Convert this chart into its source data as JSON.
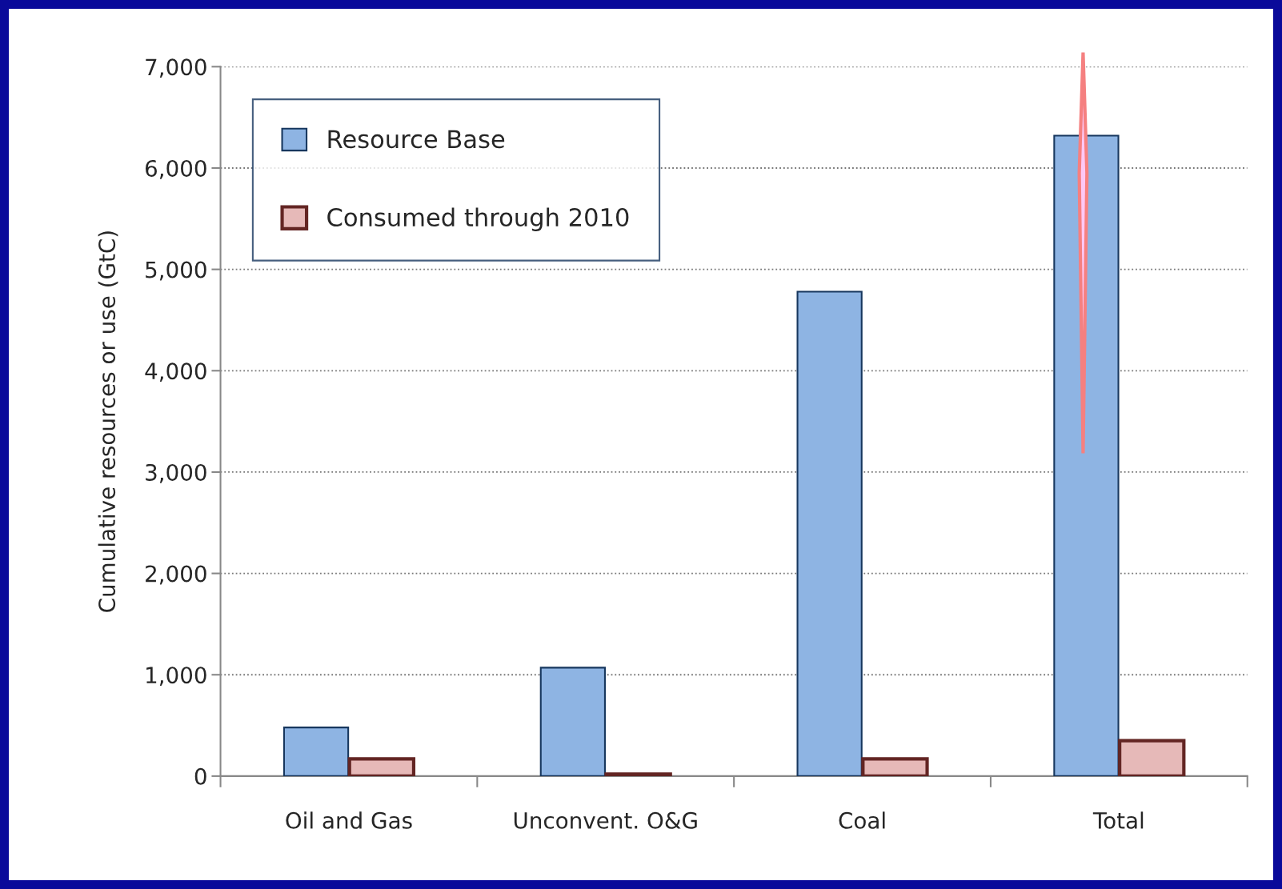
{
  "chart_data": {
    "type": "bar",
    "ylabel": "Cumulative resources or use (GtC)",
    "categories": [
      "Oil and Gas",
      "Unconvent. O&G",
      "Coal",
      "Total"
    ],
    "series": [
      {
        "name": "Resource Base",
        "color": "#8eb4e3",
        "values": [
          480,
          1070,
          4780,
          6320
        ]
      },
      {
        "name": "Consumed through 2010",
        "color": "#e6b9b8",
        "values": [
          170,
          20,
          170,
          350
        ]
      }
    ],
    "ylim": [
      0,
      7000
    ],
    "yticks": [
      0,
      {
        "value": 1000,
        "label": "1,000"
      },
      {
        "value": 2000,
        "label": "2,000"
      },
      {
        "value": 3000,
        "label": "3,000"
      },
      {
        "value": 4000,
        "label": "4,000"
      },
      {
        "value": 5000,
        "label": "5,000"
      },
      {
        "value": 6000,
        "label": "6,000"
      },
      {
        "value": 7000,
        "label": "7,000"
      }
    ],
    "grid": "y",
    "legend": "top left"
  }
}
